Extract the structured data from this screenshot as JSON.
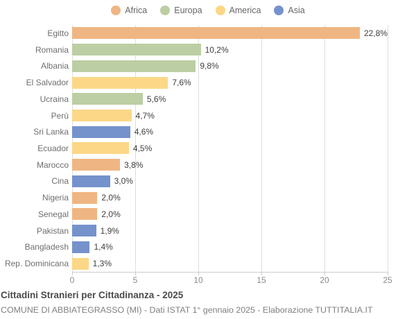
{
  "legend": {
    "items": [
      {
        "label": "Africa",
        "color": "#EFB683"
      },
      {
        "label": "Europa",
        "color": "#BCCEA3"
      },
      {
        "label": "America",
        "color": "#FCD787"
      },
      {
        "label": "Asia",
        "color": "#7592CC"
      }
    ]
  },
  "chart_data": {
    "type": "bar",
    "orientation": "horizontal",
    "title": "Cittadini Stranieri per Cittadinanza - 2025",
    "subtitle": "COMUNE DI ABBIATEGRASSO (MI) - Dati ISTAT 1° gennaio 2025 - Elaborazione TUTTITALIA.IT",
    "xlim": [
      0,
      25
    ],
    "xticks": [
      0,
      5,
      10,
      15,
      20,
      25
    ],
    "grid": "vertical",
    "legend_position": "top",
    "unit": "%",
    "colors": {
      "Africa": "#EFB683",
      "Europa": "#BCCEA3",
      "America": "#FCD787",
      "Asia": "#7592CC"
    },
    "rows": [
      {
        "category": "Egitto",
        "value": 22.8,
        "label": "22,8%",
        "group": "Africa"
      },
      {
        "category": "Romania",
        "value": 10.2,
        "label": "10,2%",
        "group": "Europa"
      },
      {
        "category": "Albania",
        "value": 9.8,
        "label": "9,8%",
        "group": "Europa"
      },
      {
        "category": "El Salvador",
        "value": 7.6,
        "label": "7,6%",
        "group": "America"
      },
      {
        "category": "Ucraina",
        "value": 5.6,
        "label": "5,6%",
        "group": "Europa"
      },
      {
        "category": "Perù",
        "value": 4.7,
        "label": "4,7%",
        "group": "America"
      },
      {
        "category": "Sri Lanka",
        "value": 4.6,
        "label": "4,6%",
        "group": "Asia"
      },
      {
        "category": "Ecuador",
        "value": 4.5,
        "label": "4,5%",
        "group": "America"
      },
      {
        "category": "Marocco",
        "value": 3.8,
        "label": "3,8%",
        "group": "Africa"
      },
      {
        "category": "Cina",
        "value": 3.0,
        "label": "3,0%",
        "group": "Asia"
      },
      {
        "category": "Nigeria",
        "value": 2.0,
        "label": "2,0%",
        "group": "Africa"
      },
      {
        "category": "Senegal",
        "value": 2.0,
        "label": "2,0%",
        "group": "Africa"
      },
      {
        "category": "Pakistan",
        "value": 1.9,
        "label": "1,9%",
        "group": "Asia"
      },
      {
        "category": "Bangladesh",
        "value": 1.4,
        "label": "1,4%",
        "group": "Asia"
      },
      {
        "category": "Rep. Dominicana",
        "value": 1.3,
        "label": "1,3%",
        "group": "America"
      }
    ]
  }
}
